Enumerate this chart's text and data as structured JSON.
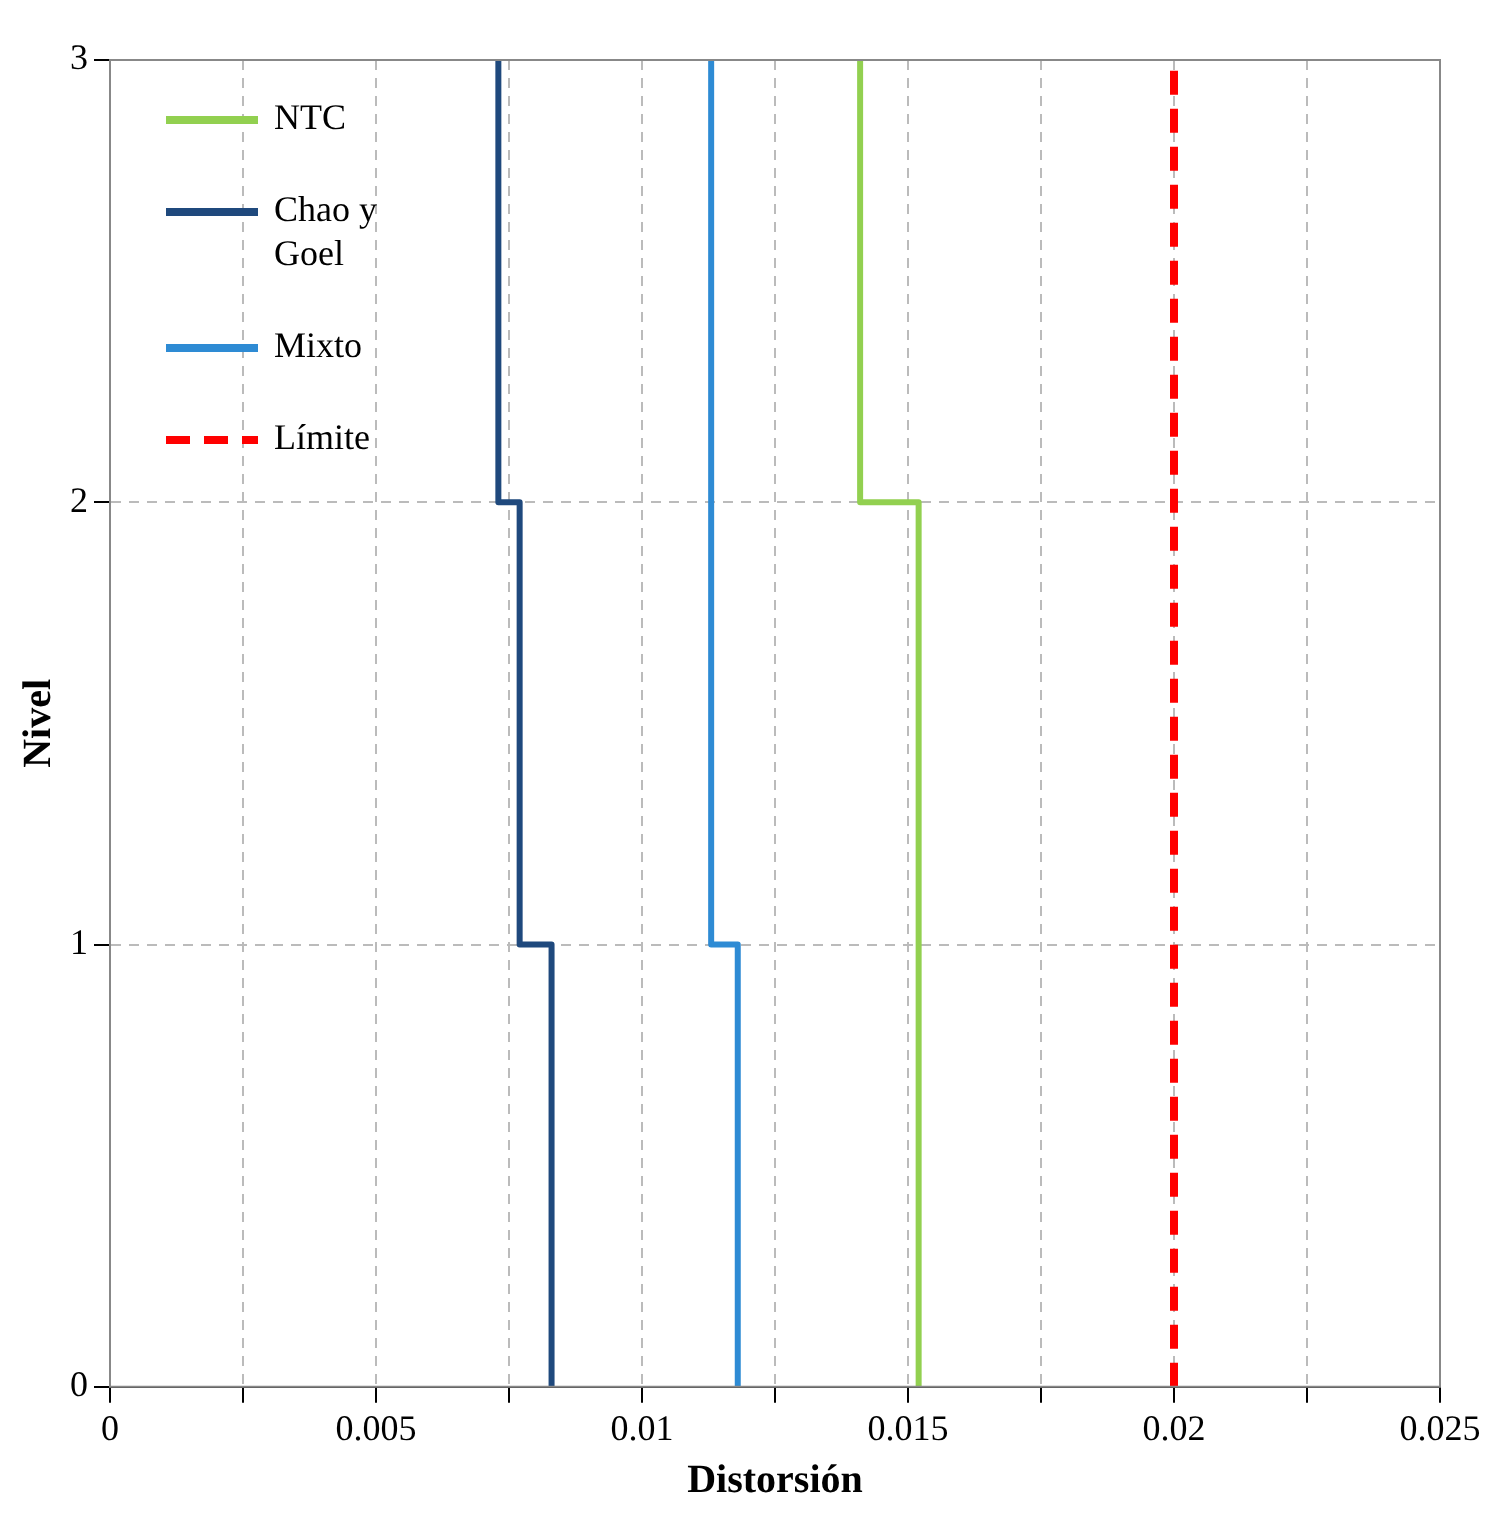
{
  "chart_data": {
    "type": "line",
    "xlabel": "Distorsión",
    "ylabel": "Nivel",
    "xlim": [
      0,
      0.025
    ],
    "ylim": [
      0,
      3
    ],
    "xticks": [
      0,
      {
        "value": 0.0025,
        "label": null
      },
      0.005,
      {
        "value": 0.0075,
        "label": null
      },
      0.01,
      {
        "value": 0.0125,
        "label": null
      },
      0.015,
      {
        "value": 0.0175,
        "label": null
      },
      0.02,
      {
        "value": 0.0225,
        "label": null
      },
      0.025
    ],
    "yticks": [
      0,
      1,
      2,
      3
    ],
    "grid": true,
    "legend": "top left",
    "marker": "none",
    "line_style": "solid",
    "series": [
      {
        "name": "NTC",
        "color": "#92d050",
        "x": [
          0.0152,
          0.0152,
          0.0152,
          0.0152,
          0.0141,
          0.0141
        ],
        "values": [
          0,
          1,
          1,
          2,
          2,
          3
        ]
      },
      {
        "name": "Chao y Goel",
        "color": "#1f497d",
        "x": [
          0.0083,
          0.0083,
          0.0077,
          0.0077,
          0.0073,
          0.0073
        ],
        "values": [
          0,
          1,
          1,
          2,
          2,
          3
        ]
      },
      {
        "name": "Mixto",
        "color": "#2e8bd4",
        "x": [
          0.0118,
          0.0118,
          0.0113,
          0.0113,
          0.0113,
          0.0113
        ],
        "values": [
          0,
          1,
          1,
          2,
          2,
          3
        ]
      },
      {
        "name": "Límite",
        "color": "#ff0000",
        "line_style": "dashed",
        "x": [
          0.02,
          0.02
        ],
        "values": [
          0,
          3
        ]
      }
    ]
  }
}
